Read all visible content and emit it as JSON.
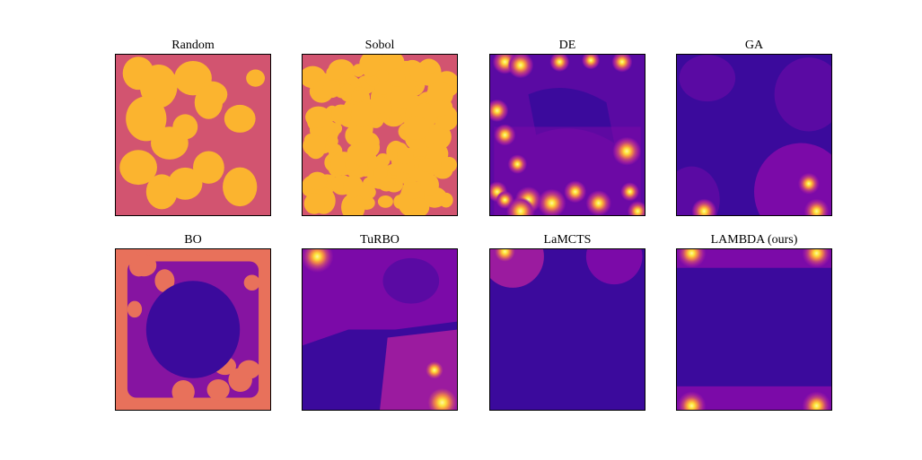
{
  "figure": {
    "colors": {
      "deep": "#2d0f8f",
      "dark_violet": "#3b0a9c",
      "violet": "#5a0aa3",
      "purple": "#7b0aa8",
      "magenta": "#9b1b9f",
      "pink": "#c0437d",
      "rose": "#d25470",
      "salmon": "#e8715b",
      "orange": "#f58f44",
      "amber": "#fbb42f",
      "yellow": "#fde43a",
      "light": "#fdf7a6"
    }
  },
  "chart_data": [
    {
      "type": "heatmap",
      "title": "Random",
      "pattern": "blobs",
      "background": "rose",
      "foreground": "amber"
    },
    {
      "type": "heatmap",
      "title": "Sobol",
      "pattern": "dense",
      "background": "rose",
      "foreground": "amber"
    },
    {
      "type": "heatmap",
      "title": "DE",
      "pattern": "hotspots-ring",
      "background": "violet"
    },
    {
      "type": "heatmap",
      "title": "GA",
      "pattern": "corner-hotspots",
      "background": "dark_violet"
    },
    {
      "type": "heatmap",
      "title": "BO",
      "pattern": "ring",
      "background": "purple",
      "foreground": "salmon"
    },
    {
      "type": "heatmap",
      "title": "TuRBO",
      "pattern": "split",
      "background": "dark_violet"
    },
    {
      "type": "heatmap",
      "title": "LaMCTS",
      "pattern": "top-hotspots",
      "background": "dark_violet"
    },
    {
      "type": "heatmap",
      "title": "LAMBDA (ours)",
      "pattern": "edge-hotspots",
      "background": "dark_violet"
    }
  ]
}
